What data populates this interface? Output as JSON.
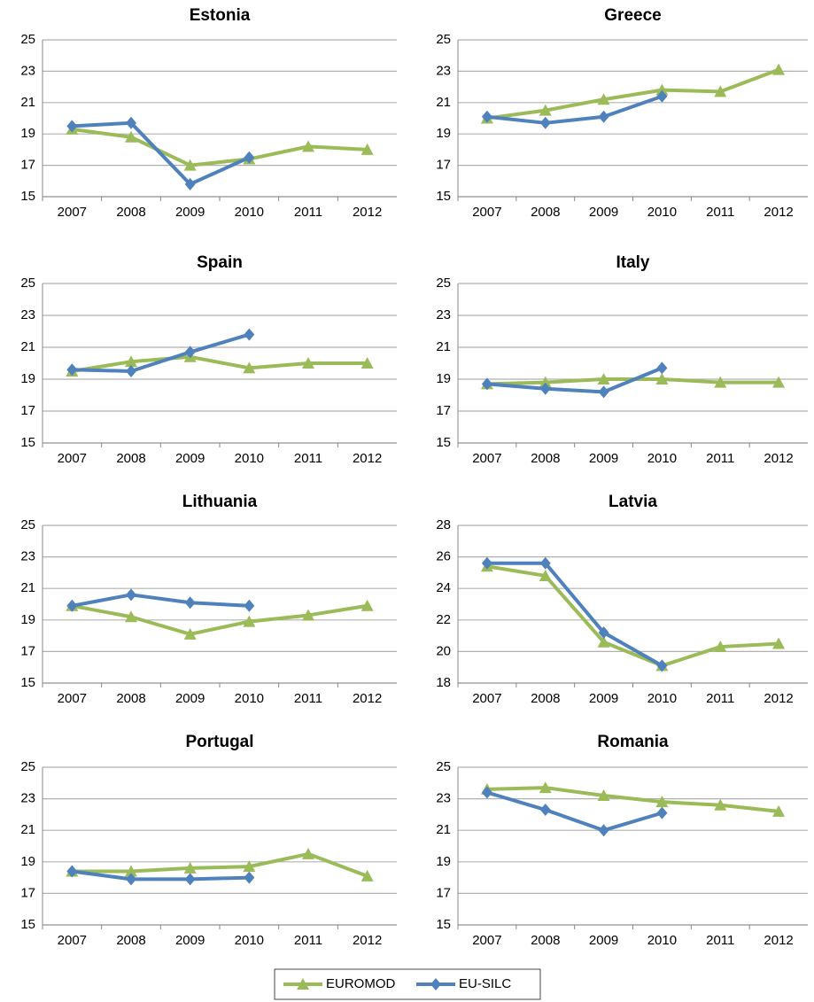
{
  "chart_data": [
    {
      "type": "line",
      "title": "Estonia",
      "categories": [
        "2007",
        "2008",
        "2009",
        "2010",
        "2011",
        "2012"
      ],
      "series": [
        {
          "name": "EUROMOD",
          "color": "#9bbb59",
          "values": [
            19.3,
            18.8,
            17.0,
            17.4,
            18.2,
            18.0
          ]
        },
        {
          "name": "EU-SILC",
          "color": "#4f81bd",
          "values": [
            19.5,
            19.7,
            15.8,
            17.5,
            null,
            null
          ]
        }
      ],
      "ylim": [
        15,
        25
      ],
      "yticks": [
        15,
        17,
        19,
        21,
        23,
        25
      ],
      "grid": true
    },
    {
      "type": "line",
      "title": "Greece",
      "categories": [
        "2007",
        "2008",
        "2009",
        "2010",
        "2011",
        "2012"
      ],
      "series": [
        {
          "name": "EUROMOD",
          "color": "#9bbb59",
          "values": [
            20.0,
            20.5,
            21.2,
            21.8,
            21.7,
            23.1
          ]
        },
        {
          "name": "EU-SILC",
          "color": "#4f81bd",
          "values": [
            20.1,
            19.7,
            20.1,
            21.4,
            null,
            null
          ]
        }
      ],
      "ylim": [
        15,
        25
      ],
      "yticks": [
        15,
        17,
        19,
        21,
        23,
        25
      ],
      "grid": true
    },
    {
      "type": "line",
      "title": "Spain",
      "categories": [
        "2007",
        "2008",
        "2009",
        "2010",
        "2011",
        "2012"
      ],
      "series": [
        {
          "name": "EUROMOD",
          "color": "#9bbb59",
          "values": [
            19.5,
            20.1,
            20.4,
            19.7,
            20.0,
            20.0
          ]
        },
        {
          "name": "EU-SILC",
          "color": "#4f81bd",
          "values": [
            19.6,
            19.5,
            20.7,
            21.8,
            null,
            null
          ]
        }
      ],
      "ylim": [
        15,
        25
      ],
      "yticks": [
        15,
        17,
        19,
        21,
        23,
        25
      ],
      "grid": true
    },
    {
      "type": "line",
      "title": "Italy",
      "categories": [
        "2007",
        "2008",
        "2009",
        "2010",
        "2011",
        "2012"
      ],
      "series": [
        {
          "name": "EUROMOD",
          "color": "#9bbb59",
          "values": [
            18.7,
            18.8,
            19.0,
            19.0,
            18.8,
            18.8
          ]
        },
        {
          "name": "EU-SILC",
          "color": "#4f81bd",
          "values": [
            18.7,
            18.4,
            18.2,
            19.7,
            null,
            null
          ]
        }
      ],
      "ylim": [
        15,
        25
      ],
      "yticks": [
        15,
        17,
        19,
        21,
        23,
        25
      ],
      "grid": true
    },
    {
      "type": "line",
      "title": "Lithuania",
      "categories": [
        "2007",
        "2008",
        "2009",
        "2010",
        "2011",
        "2012"
      ],
      "series": [
        {
          "name": "EUROMOD",
          "color": "#9bbb59",
          "values": [
            19.9,
            19.2,
            18.1,
            18.9,
            19.3,
            19.9
          ]
        },
        {
          "name": "EU-SILC",
          "color": "#4f81bd",
          "values": [
            19.9,
            20.6,
            20.1,
            19.9,
            null,
            null
          ]
        }
      ],
      "ylim": [
        15,
        25
      ],
      "yticks": [
        15,
        17,
        19,
        21,
        23,
        25
      ],
      "grid": true
    },
    {
      "type": "line",
      "title": "Latvia",
      "categories": [
        "2007",
        "2008",
        "2009",
        "2010",
        "2011",
        "2012"
      ],
      "series": [
        {
          "name": "EUROMOD",
          "color": "#9bbb59",
          "values": [
            25.4,
            24.8,
            20.6,
            19.1,
            20.3,
            20.5
          ]
        },
        {
          "name": "EU-SILC",
          "color": "#4f81bd",
          "values": [
            25.6,
            25.6,
            21.2,
            19.1,
            null,
            null
          ]
        }
      ],
      "ylim": [
        18,
        28
      ],
      "yticks": [
        18,
        20,
        22,
        24,
        26,
        28
      ],
      "grid": true
    },
    {
      "type": "line",
      "title": "Portugal",
      "categories": [
        "2007",
        "2008",
        "2009",
        "2010",
        "2011",
        "2012"
      ],
      "series": [
        {
          "name": "EUROMOD",
          "color": "#9bbb59",
          "values": [
            18.4,
            18.4,
            18.6,
            18.7,
            19.5,
            18.1
          ]
        },
        {
          "name": "EU-SILC",
          "color": "#4f81bd",
          "values": [
            18.4,
            17.9,
            17.9,
            18.0,
            null,
            null
          ]
        }
      ],
      "ylim": [
        15,
        25
      ],
      "yticks": [
        15,
        17,
        19,
        21,
        23,
        25
      ],
      "grid": true
    },
    {
      "type": "line",
      "title": "Romania",
      "categories": [
        "2007",
        "2008",
        "2009",
        "2010",
        "2011",
        "2012"
      ],
      "series": [
        {
          "name": "EUROMOD",
          "color": "#9bbb59",
          "values": [
            23.6,
            23.7,
            23.2,
            22.8,
            22.6,
            22.2
          ]
        },
        {
          "name": "EU-SILC",
          "color": "#4f81bd",
          "values": [
            23.4,
            22.3,
            21.0,
            22.1,
            null,
            null
          ]
        }
      ],
      "ylim": [
        15,
        25
      ],
      "yticks": [
        15,
        17,
        19,
        21,
        23,
        25
      ],
      "grid": true
    }
  ]
}
